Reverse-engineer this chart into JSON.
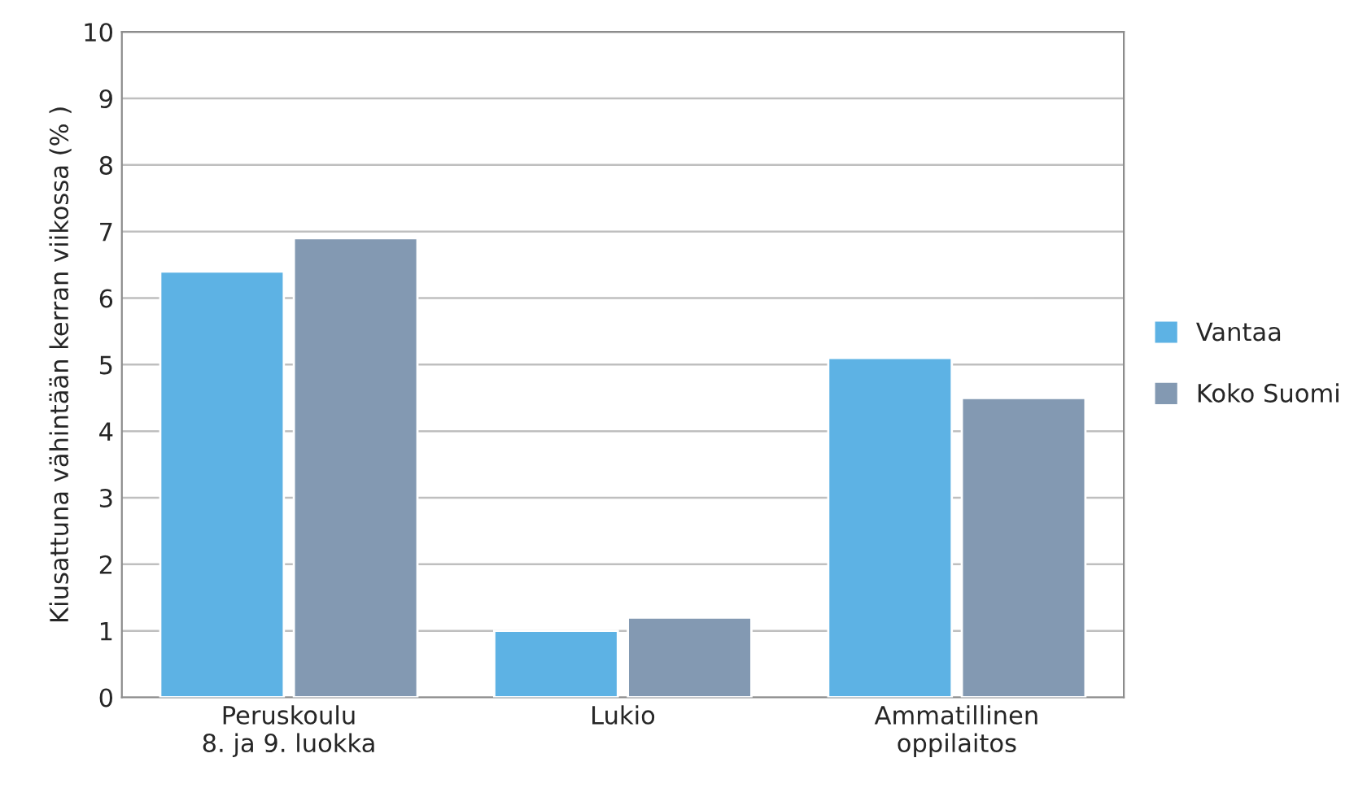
{
  "chart_data": {
    "type": "bar",
    "ylabel": "Kiusattuna vähintään kerran viikossa (% )",
    "categories": [
      "Peruskoulu\n8. ja 9. luokka",
      "Lukio",
      "Ammatillinen\noppilaitos"
    ],
    "series": [
      {
        "name": "Vantaa",
        "color": "#5db2e4",
        "values": [
          6.4,
          1.0,
          5.1
        ]
      },
      {
        "name": "Koko Suomi",
        "color": "#8399b2",
        "values": [
          6.9,
          1.2,
          4.5
        ]
      }
    ],
    "ylim": [
      0,
      10
    ],
    "yticks": [
      0,
      1,
      2,
      3,
      4,
      5,
      6,
      7,
      8,
      9,
      10
    ],
    "grid": "y",
    "legend": "right"
  }
}
